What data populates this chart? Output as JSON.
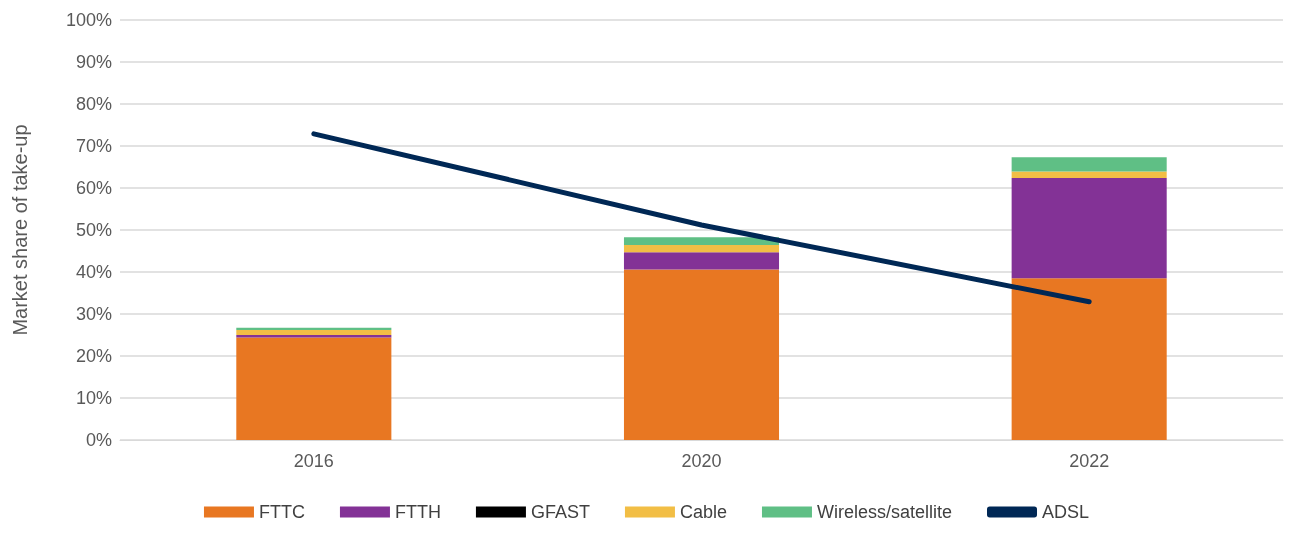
{
  "chart_data": {
    "type": "bar",
    "stacked": true,
    "ylabel": "Market share of take-up",
    "categories": [
      "2016",
      "2020",
      "2022"
    ],
    "series": [
      {
        "name": "FTTC",
        "color": "#e87722",
        "values": [
          24.4,
          40.6,
          38.5
        ]
      },
      {
        "name": "FTTH",
        "color": "#833296",
        "values": [
          0.6,
          4.1,
          23.9
        ]
      },
      {
        "name": "GFAST",
        "color": "#000000",
        "values": [
          0,
          0,
          0
        ]
      },
      {
        "name": "Cable",
        "color": "#f2be45",
        "values": [
          1.2,
          1.7,
          1.5
        ]
      },
      {
        "name": "Wireless/satellite",
        "color": "#5fbf85",
        "values": [
          0.5,
          1.9,
          3.4
        ]
      },
      {
        "name": "ADSL",
        "type": "line",
        "color": "#002855",
        "marker": "none",
        "values": [
          72.9,
          51.2,
          32.9
        ]
      }
    ],
    "ylim": [
      0,
      100
    ],
    "yticks": [
      {
        "value": 0,
        "label": "0%"
      },
      {
        "value": 10,
        "label": "10%"
      },
      {
        "value": 20,
        "label": "20%"
      },
      {
        "value": 30,
        "label": "30%"
      },
      {
        "value": 40,
        "label": "40%"
      },
      {
        "value": 50,
        "label": "50%"
      },
      {
        "value": 60,
        "label": "60%"
      },
      {
        "value": 70,
        "label": "70%"
      },
      {
        "value": 80,
        "label": "80%"
      },
      {
        "value": 90,
        "label": "90%"
      },
      {
        "value": 100,
        "label": "100%"
      }
    ],
    "grid": "y",
    "legend": "bottom"
  }
}
